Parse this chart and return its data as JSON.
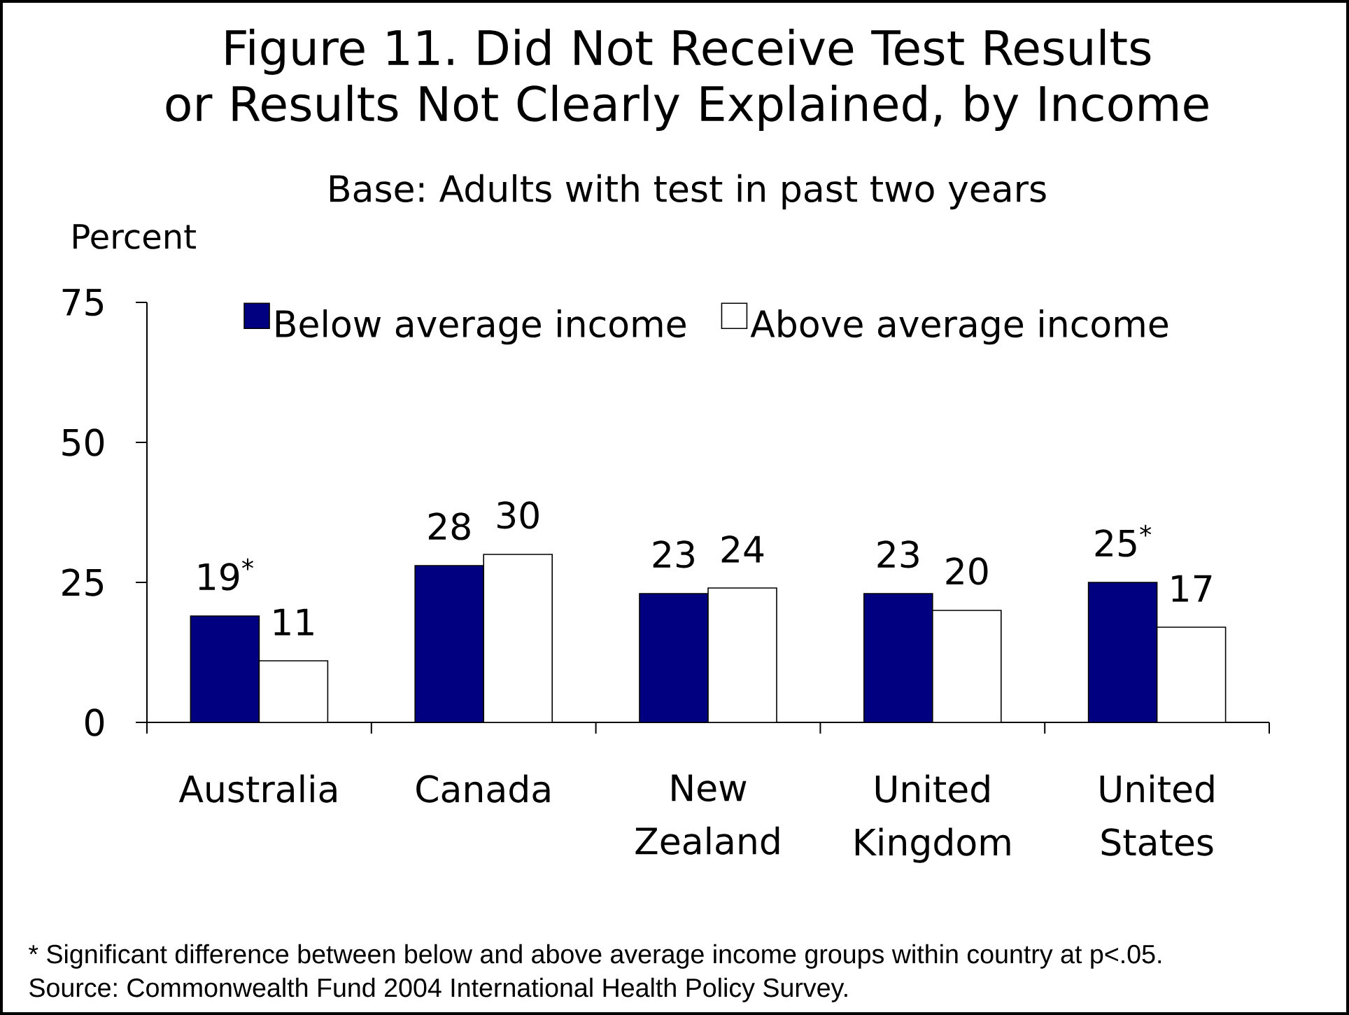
{
  "chart_data": {
    "type": "bar",
    "title": "Figure 11. Did Not Receive Test Results or Results Not Clearly Explained, by Income",
    "subtitle": "Base: Adults with test in past two years",
    "ylabel": "Percent",
    "categories": [
      "Australia",
      "Canada",
      "New Zealand",
      "United Kingdom",
      "United States"
    ],
    "series": [
      {
        "name": "Below average income",
        "color": "#000080",
        "values": [
          19,
          28,
          23,
          23,
          25
        ],
        "value_labels": [
          "19$^{*}$",
          "28",
          "23",
          "23",
          "25$^{*}$"
        ]
      },
      {
        "name": "Above average income",
        "color": "#ffffff",
        "values": [
          11,
          30,
          24,
          20,
          17
        ],
        "value_labels": [
          "11",
          "30",
          "24",
          "20",
          "17"
        ]
      }
    ],
    "ylim": [
      0,
      75
    ],
    "yticks": [
      0,
      25,
      50,
      75
    ],
    "legend": "top",
    "annotations": [
      "* Significant difference between below and above average income groups within country at p<.05.",
      "Source: Commonwealth Fund 2004 International Health Policy Survey."
    ]
  }
}
